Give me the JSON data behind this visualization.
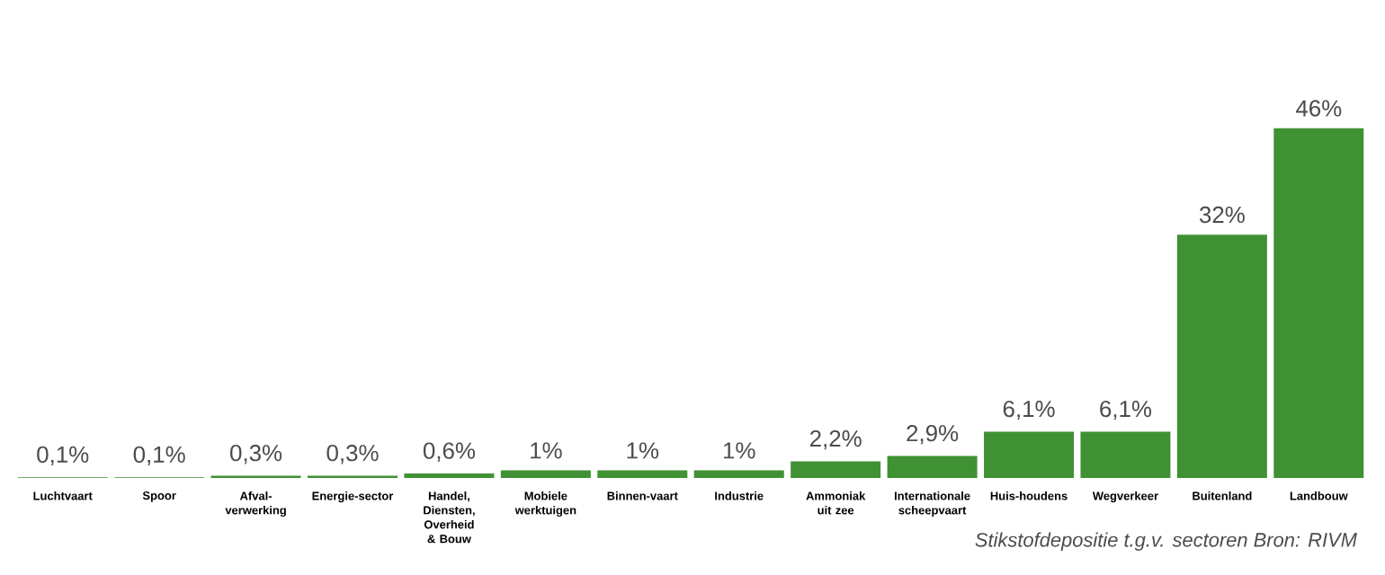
{
  "chart_data": {
    "type": "bar",
    "categories": [
      "Luchtvaart",
      "Spoor",
      "Afval-verwerking",
      "Energie-sector",
      "Handel, Diensten, Overheid & Bouw",
      "Mobiele werktuigen",
      "Binnen-vaart",
      "Industrie",
      "Ammoniak uit zee",
      "Internationale scheepvaart",
      "Huis-houdens",
      "Wegverkeer",
      "Buitenland",
      "Landbouw"
    ],
    "values": [
      0.1,
      0.1,
      0.3,
      0.3,
      0.6,
      1,
      1,
      1,
      2.2,
      2.9,
      6.1,
      6.1,
      32,
      46
    ],
    "value_labels": [
      "0,1%",
      "0,1%",
      "0,3%",
      "0,3%",
      "0,6%",
      "1%",
      "1%",
      "1%",
      "2,2%",
      "2,9%",
      "6,1%",
      "6,1%",
      "32%",
      "46%"
    ],
    "color": "#3f9133",
    "annotations": [
      "Stikstofdepositie t.g.v. sectoren Bron: RIVM"
    ]
  }
}
